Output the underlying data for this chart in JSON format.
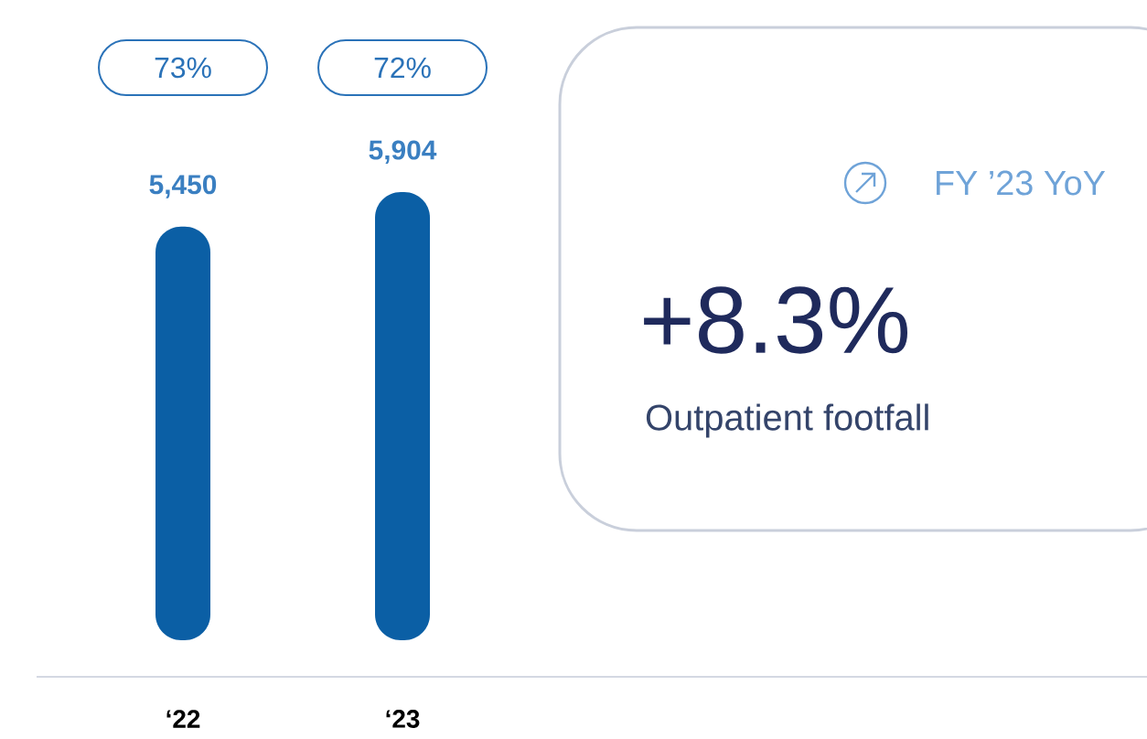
{
  "chart_data": {
    "type": "bar",
    "categories": [
      "‘22",
      "‘23"
    ],
    "values": [
      5450,
      5904
    ],
    "value_labels": [
      "5,450",
      "5,904"
    ],
    "color": "#0b5fa5",
    "annotations": [
      "73%",
      "72%",
      "FY ’23 YoY",
      "+8.3%",
      "Outpatient footfall"
    ]
  }
}
